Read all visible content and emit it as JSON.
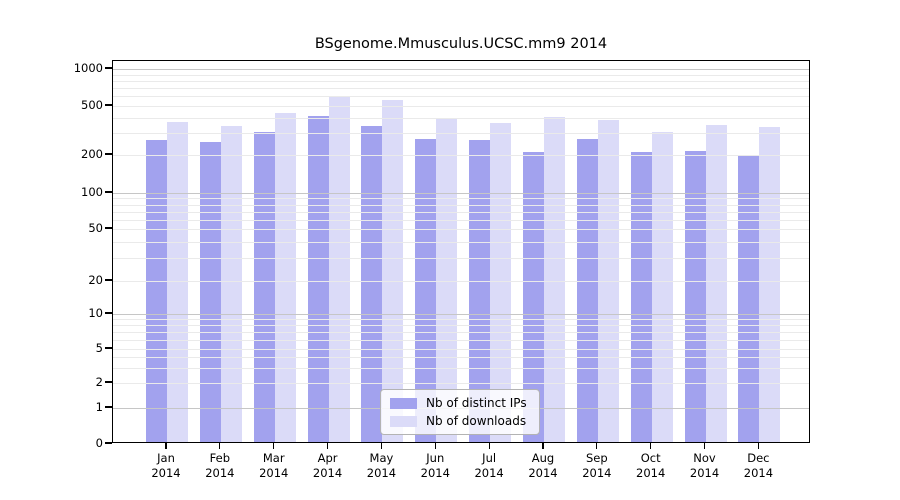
{
  "chart_data": {
    "type": "bar",
    "title": "BSgenome.Mmusculus.UCSC.mm9 2014",
    "categories": [
      "Jan",
      "Feb",
      "Mar",
      "Apr",
      "May",
      "Jun",
      "Jul",
      "Aug",
      "Sep",
      "Oct",
      "Nov",
      "Dec"
    ],
    "x_year": "2014",
    "series": [
      {
        "name": "Nb of distinct IPs",
        "color": "#a2a2ee",
        "values": [
          255,
          247,
          296,
          400,
          333,
          258,
          257,
          204,
          262,
          202,
          207,
          189
        ]
      },
      {
        "name": "Nb of downloads",
        "color": "#dbdbf8",
        "values": [
          357,
          332,
          423,
          580,
          542,
          388,
          352,
          393,
          371,
          297,
          337,
          325
        ]
      }
    ],
    "y_axis": {
      "scale": "log",
      "tick_labels": [
        0,
        1,
        2,
        5,
        10,
        20,
        50,
        100,
        200,
        500,
        1000
      ],
      "ylim": [
        0,
        1000
      ],
      "grid": true
    },
    "legend": {
      "position": "bottom-center-inside",
      "entries": [
        "Nb of distinct IPs",
        "Nb of downloads"
      ]
    }
  },
  "colors": {
    "background": "#ffffff",
    "axis": "#000000",
    "grid_major": "#c6c6c6",
    "grid_minor": "#eaeaea",
    "legend_border": "#b3b3b3"
  }
}
